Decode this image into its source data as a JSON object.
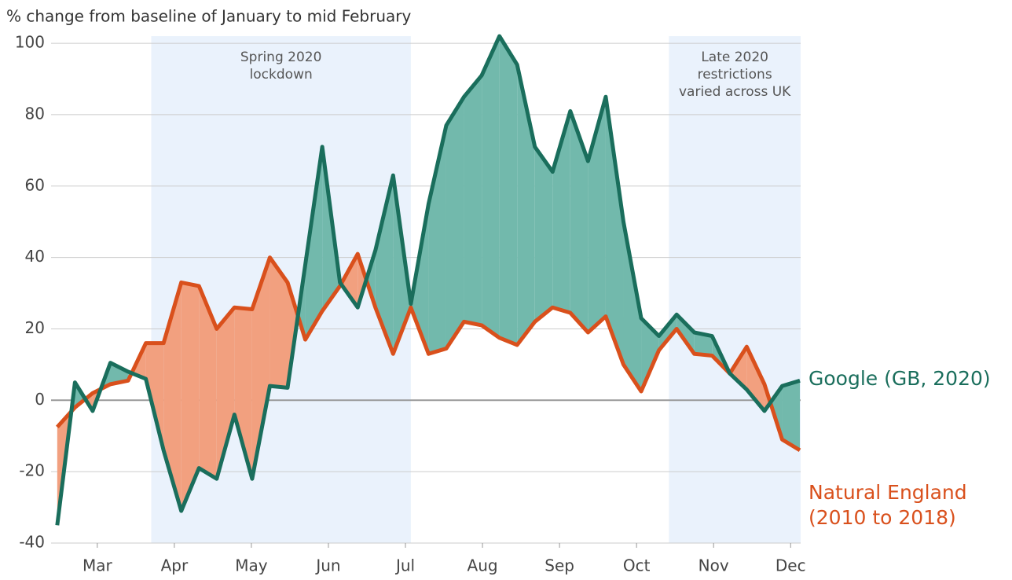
{
  "chart_data": {
    "type": "line",
    "y_label": "% change from baseline of January to mid February",
    "x": [
      2.48,
      2.71,
      2.94,
      3.17,
      3.4,
      3.63,
      3.86,
      4.09,
      4.32,
      4.55,
      4.78,
      5.01,
      5.24,
      5.47,
      5.7,
      5.92,
      6.15,
      6.38,
      6.61,
      6.84,
      7.07,
      7.3,
      7.53,
      7.76,
      7.99,
      8.22,
      8.45,
      8.68,
      8.91,
      9.14,
      9.37,
      9.6,
      9.83,
      10.06,
      10.29,
      10.52,
      10.75,
      10.98,
      11.21,
      11.43,
      11.66,
      11.89,
      12.12
    ],
    "series": [
      {
        "name": "Google (GB, 2020)",
        "color": "#1a6e5c",
        "fill": "#72b9ac",
        "values": [
          -35,
          5,
          -3,
          10.5,
          8,
          6,
          -14,
          -31,
          -19,
          -22,
          -4,
          -22,
          4,
          3.5,
          38,
          71,
          33,
          26,
          42,
          63,
          27,
          55,
          77,
          85,
          91,
          102,
          94,
          71,
          64,
          81,
          67,
          85,
          50,
          23,
          18,
          24,
          19,
          18,
          7.5,
          3,
          -3,
          4,
          5.5
        ]
      },
      {
        "name": "Natural England (2010 to 2018)",
        "color": "#d9501c",
        "fill": "#f2a07f",
        "values": [
          -7.5,
          -2,
          2,
          4.5,
          5.5,
          16,
          16,
          33,
          32,
          20,
          26,
          25.5,
          40,
          33,
          17,
          25,
          32,
          41,
          26,
          13,
          26,
          13,
          14.5,
          22,
          21,
          17.5,
          15.5,
          22,
          26,
          24.5,
          19,
          23.5,
          10,
          2.5,
          14,
          20,
          13,
          12.5,
          7.5,
          15,
          4.5,
          -11,
          -14
        ]
      }
    ],
    "xlim": [
      2.4,
      12.13
    ],
    "xticks": [
      {
        "value": 3,
        "label": "Mar"
      },
      {
        "value": 4,
        "label": "Apr"
      },
      {
        "value": 5,
        "label": "May"
      },
      {
        "value": 6,
        "label": "Jun"
      },
      {
        "value": 7,
        "label": "Jul"
      },
      {
        "value": 8,
        "label": "Aug"
      },
      {
        "value": 9,
        "label": "Sep"
      },
      {
        "value": 10,
        "label": "Oct"
      },
      {
        "value": 11,
        "label": "Nov"
      },
      {
        "value": 12,
        "label": "Dec"
      }
    ],
    "ylim": [
      -40,
      102
    ],
    "yticks": [
      -40,
      -20,
      0,
      20,
      40,
      60,
      80,
      100
    ],
    "grid": true,
    "shaded_regions": [
      {
        "x": [
          3.7,
          7.07
        ],
        "label": "Spring 2020 lockdown",
        "color": "#eaf2fc"
      },
      {
        "x": [
          10.42,
          12.13
        ],
        "label": "Late 2020 restrictions varied across UK",
        "color": "#eaf2fc"
      }
    ]
  }
}
